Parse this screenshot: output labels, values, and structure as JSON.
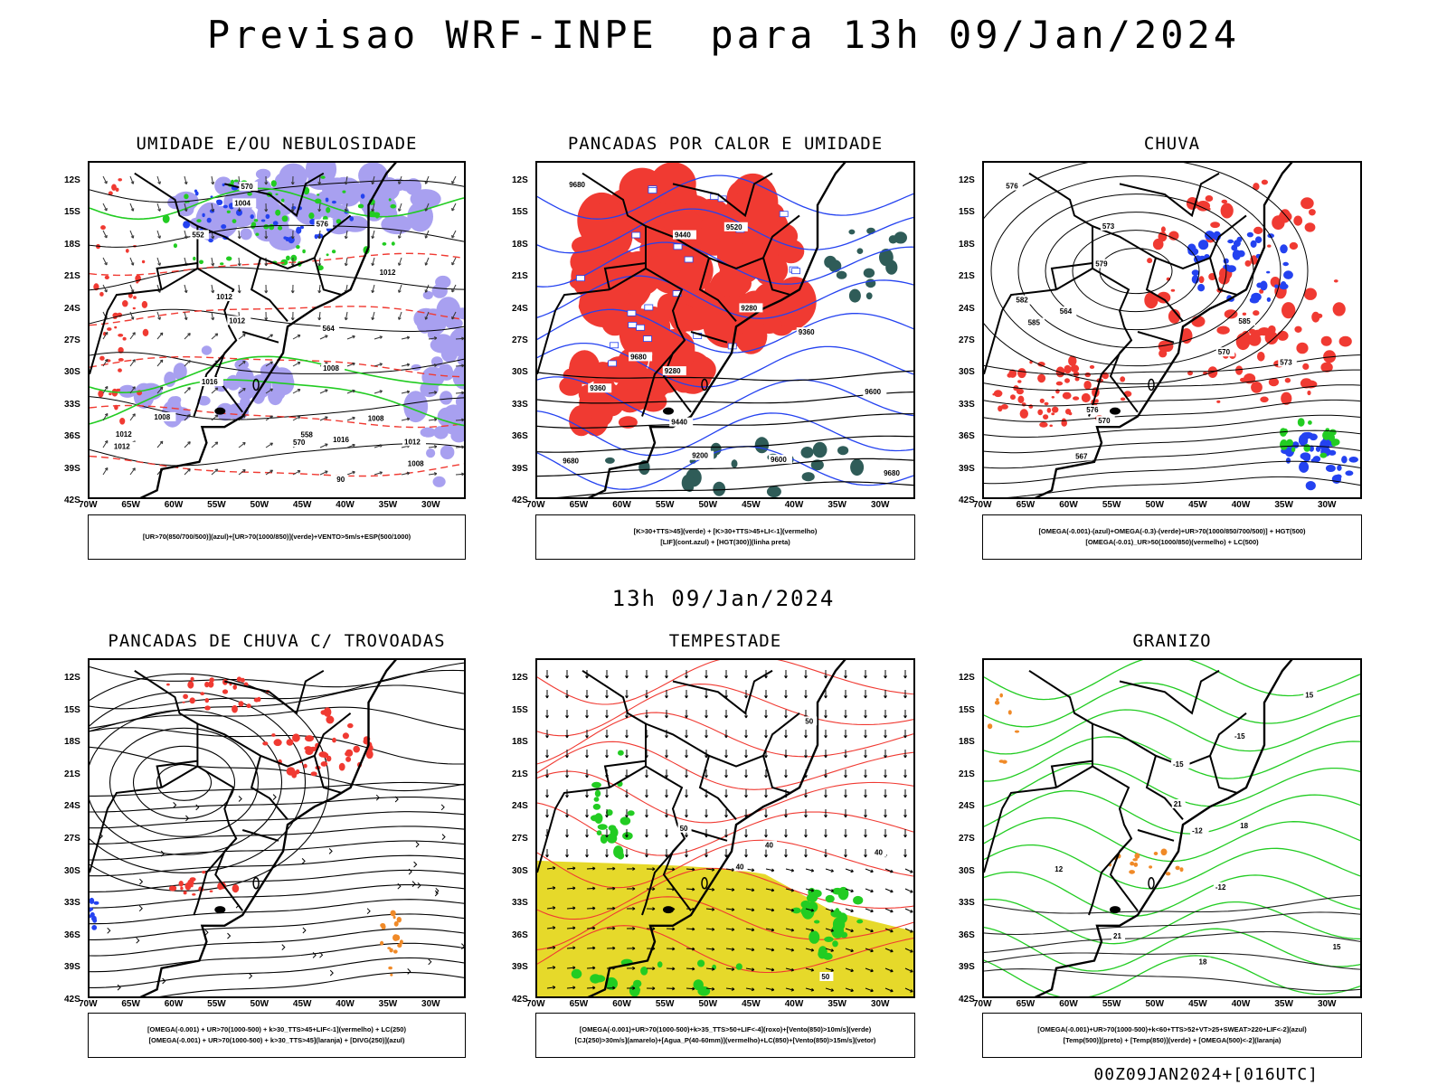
{
  "header": {
    "title": "Previsao WRF-INPE  para 13h 09/Jan/2024",
    "mid_title": "13h 09/Jan/2024",
    "footer": "00Z09JAN2024+[016UTC]"
  },
  "axes": {
    "lat_labels": [
      "12S",
      "15S",
      "18S",
      "21S",
      "24S",
      "27S",
      "30S",
      "33S",
      "36S",
      "39S",
      "42S"
    ],
    "lon_labels": [
      "70W",
      "65W",
      "60W",
      "55W",
      "50W",
      "45W",
      "40W",
      "35W",
      "30W"
    ]
  },
  "colors": {
    "red": "#f03a32",
    "green": "#22cc22",
    "blue": "#2442f0",
    "lavender": "#a8a0f0",
    "yellow": "#e6d92a",
    "orange": "#f08a28",
    "darkteal": "#2f5c58"
  },
  "panels": [
    {
      "id": "umidade",
      "title": "UMIDADE E/OU NEBULOSIDADE",
      "legend": [
        "[UR>70(850/700/500)](azul)+[UR>70(1000/850)](verde)+VENTO>5m/s+ESP(500/1000)"
      ],
      "contour_labels": [
        "1012",
        "1008",
        "1012",
        "1016",
        "1012",
        "1008",
        "1004",
        "1008",
        "1012",
        "1016",
        "1012",
        "1012",
        "1008",
        "570",
        "576",
        "564",
        "570",
        "558",
        "552",
        "90"
      ]
    },
    {
      "id": "pancadas-calor",
      "title": "PANCADAS POR CALOR E UMIDADE",
      "legend": [
        "[K>30+TTS>45](verde) + [K>30+TTS>45+LI<-1](vermelho)",
        "[LIF](cont.azul) + [HGT(300)](linha preta)"
      ],
      "contour_labels": [
        "9680",
        "9680",
        "9680",
        "9600",
        "9520",
        "9440",
        "9360",
        "9280",
        "9200",
        "9440",
        "9360",
        "9280",
        "9600",
        "9680"
      ]
    },
    {
      "id": "chuva",
      "title": "CHUVA",
      "legend": [
        "[OMEGA(-0.001)-(azul)+OMEGA(-0.3)-(verde)+UR>70(1000/850/700/500)] + HGT(500)",
        "[OMEGA(-0.01)_UR>50(1000/850)(vermelho) + LC(500)"
      ],
      "contour_labels": [
        "585",
        "579",
        "576",
        "573",
        "570",
        "567",
        "564",
        "585",
        "582",
        "576",
        "573",
        "570"
      ]
    },
    {
      "id": "trovoadas",
      "title": "PANCADAS DE CHUVA C/ TROVOADAS",
      "legend": [
        "[OMEGA(-0.001) + UR>70(1000-500) + k>30_TTS>45+LIF<-1](vermelho) + LC(250)",
        "[OMEGA(-0.001) + UR>70(1000-500) + k>30_TTS>45](laranja) + [DIVG(250)](azul)"
      ],
      "contour_labels": []
    },
    {
      "id": "tempestade",
      "title": "TEMPESTADE",
      "legend": [
        "[OMEGA(-0.001)+UR>70(1000-500)+k>35_TTS>50+LIF<-4](roxo)+[Vento(850)>10m/s](verde)",
        "[CJ(250)>30m/s](amarelo)+[Agua_P(40-60mm)](vermelho)+LC(850)+[Vento(850)>15m/s](vetor)"
      ],
      "contour_labels": [
        "40",
        "50",
        "40",
        "50",
        "40",
        "50"
      ]
    },
    {
      "id": "granizo",
      "title": "GRANIZO",
      "legend": [
        "[OMEGA(-0.001)+UR>70(1000-500)+k<60+TTS>52+VT>25+SWEAT>220+LIF<-2](azul)",
        "[Temp(500)](preto) + [Temp(850)](verde) + [OMEGA(500)<-2](laranja)"
      ],
      "contour_labels": [
        "21",
        "18",
        "15",
        "-12",
        "-15",
        "-12",
        "-15",
        "18",
        "21",
        "15",
        "12"
      ]
    }
  ]
}
